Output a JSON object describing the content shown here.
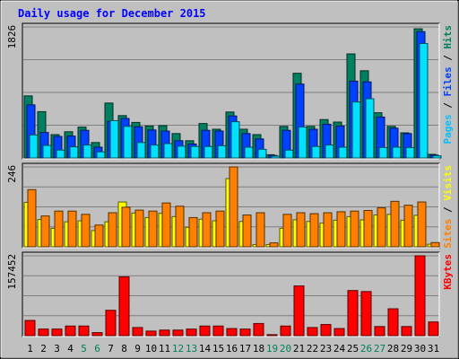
{
  "chart_data": {
    "type": "bar",
    "title": "Daily usage for December 2015",
    "categories": [
      "1",
      "2",
      "3",
      "4",
      "5",
      "6",
      "7",
      "8",
      "9",
      "10",
      "11",
      "12",
      "13",
      "14",
      "15",
      "16",
      "17",
      "18",
      "19",
      "20",
      "21",
      "22",
      "23",
      "24",
      "25",
      "26",
      "27",
      "28",
      "29",
      "30",
      "31"
    ],
    "weekend_days": [
      "5",
      "6",
      "12",
      "13",
      "19",
      "20",
      "26",
      "27"
    ],
    "panels": [
      {
        "id": "hits-files-pages",
        "ymax_label": "1826",
        "ymax": 1826,
        "ylabel_parts": [
          {
            "text": "Pages",
            "color": "#00c0ff"
          },
          {
            "text": " / ",
            "color": "#000000"
          },
          {
            "text": "Files",
            "color": "#0040ff"
          },
          {
            "text": " / ",
            "color": "#000000"
          },
          {
            "text": "Hits",
            "color": "#00805c"
          }
        ],
        "series": [
          {
            "name": "Hits",
            "color": "#008060",
            "values": [
              865,
              645,
              325,
              365,
              430,
              215,
              765,
              590,
              495,
              445,
              450,
              340,
              240,
              480,
              400,
              640,
              400,
              325,
              45,
              440,
              1180,
              440,
              535,
              500,
              1450,
              1215,
              630,
              440,
              350,
              1800,
              50
            ]
          },
          {
            "name": "Files",
            "color": "#0040ff",
            "values": [
              740,
              355,
              300,
              305,
              385,
              150,
              510,
              550,
              435,
              390,
              375,
              240,
              195,
              385,
              375,
              585,
              340,
              265,
              35,
              385,
              1030,
              400,
              470,
              445,
              1070,
              1060,
              570,
              415,
              340,
              1760,
              40
            ]
          },
          {
            "name": "Pages",
            "color": "#00e0ff",
            "values": [
              320,
              175,
              110,
              155,
              180,
              85,
              520,
              440,
              215,
              180,
              200,
              165,
              160,
              160,
              170,
              505,
              150,
              120,
              25,
              110,
              430,
              160,
              180,
              150,
              780,
              825,
              145,
              150,
              145,
              1595,
              30
            ]
          }
        ]
      },
      {
        "id": "visits-sites",
        "ymax_label": "246",
        "ymax": 246,
        "ylabel_parts": [
          {
            "text": "Sites",
            "color": "#ff8000"
          },
          {
            "text": " / ",
            "color": "#000000"
          },
          {
            "text": "Visits",
            "color": "#ffff00"
          }
        ],
        "series": [
          {
            "name": "Visits",
            "color": "#ffff00",
            "values": [
              137,
              84,
              57,
              77,
              80,
              50,
              77,
              138,
              104,
              90,
              103,
              93,
              60,
              85,
              80,
              210,
              78,
              7,
              7,
              57,
              83,
              78,
              73,
              82,
              93,
              83,
              98,
              100,
              82,
              97,
              8
            ]
          },
          {
            "name": "Sites",
            "color": "#ff8000",
            "values": [
              176,
              95,
              110,
              110,
              100,
              67,
              105,
              122,
              113,
              110,
              135,
              125,
              90,
              105,
              110,
              246,
              98,
              105,
              12,
              100,
              105,
              102,
              105,
              108,
              110,
              112,
              120,
              140,
              128,
              138,
              13
            ]
          }
        ]
      },
      {
        "id": "kbytes",
        "ymax_label": "157452",
        "ymax": 157452,
        "ylabel_parts": [
          {
            "text": "KBytes",
            "color": "#ff0000"
          }
        ],
        "series": [
          {
            "name": "KBytes",
            "color": "#ff0000",
            "values": [
              30000,
              13000,
              13000,
              19000,
              19000,
              6000,
              50000,
              116000,
              16000,
              9000,
              11000,
              11000,
              13000,
              19000,
              19000,
              14000,
              13000,
              24000,
              2000,
              19000,
              98000,
              16000,
              22000,
              14000,
              89000,
              87000,
              18000,
              53000,
              18000,
              157452,
              27000
            ]
          }
        ]
      }
    ]
  },
  "colors": {
    "page_bg": "#c0c0c0",
    "plot_bg": "#c0c0c0",
    "title": "#0000ff",
    "weekday_label": "#000000",
    "weekend_label": "#00805c",
    "grid": "#808080"
  }
}
